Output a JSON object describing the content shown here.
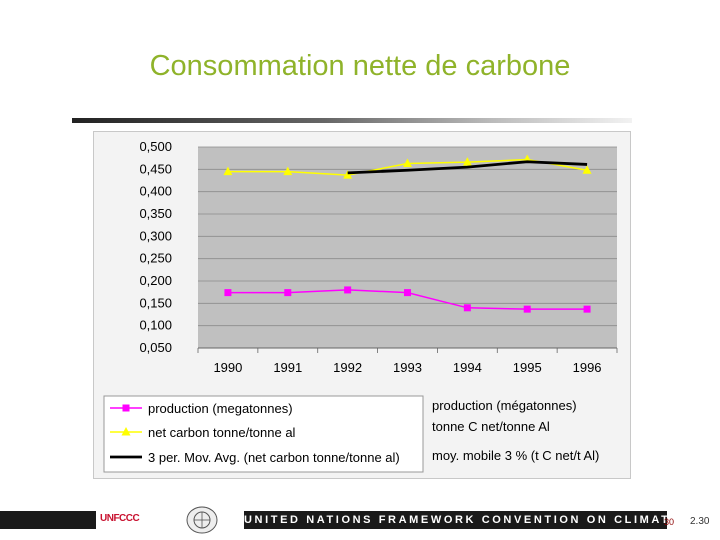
{
  "slide": {
    "title": "Consommation nette de carbone",
    "footer_banner": "UNITED NATIONS FRAMEWORK CONVENTION ON CLIMATE CHANGE",
    "logo_text": "UNFCCC",
    "page_number": "30",
    "slide_number": "2.30"
  },
  "chart_data": {
    "type": "line",
    "x": [
      "1990",
      "1991",
      "1992",
      "1993",
      "1994",
      "1995",
      "1996"
    ],
    "ylim": [
      0.05,
      0.5
    ],
    "yticks": [
      "0,500",
      "0,450",
      "0,400",
      "0,350",
      "0,300",
      "0,250",
      "0,200",
      "0,150",
      "0,100",
      "0,050"
    ],
    "grid": true,
    "legend_position": "bottom",
    "colors": {
      "plot_bg": "#c0c0c0",
      "production": "#ff00ff",
      "net_carbon": "#ffff00",
      "moving_avg": "#000000"
    },
    "series": [
      {
        "name": "production (megatonnes)",
        "values": [
          0.174,
          0.174,
          0.18,
          0.174,
          0.14,
          0.137,
          0.137
        ]
      },
      {
        "name": "net carbon tonne/tonne al",
        "values": [
          0.445,
          0.445,
          0.437,
          0.463,
          0.466,
          0.472,
          0.448
        ]
      },
      {
        "name": "3 per. Mov. Avg. (net carbon tonne/tonne al)",
        "values": [
          null,
          null,
          0.442,
          0.448,
          0.455,
          0.467,
          0.461
        ]
      }
    ],
    "legend_translations": [
      "production (mégatonnes)",
      "tonne C net/tonne Al",
      "moy. mobile 3 % (t C net/t Al)"
    ]
  }
}
